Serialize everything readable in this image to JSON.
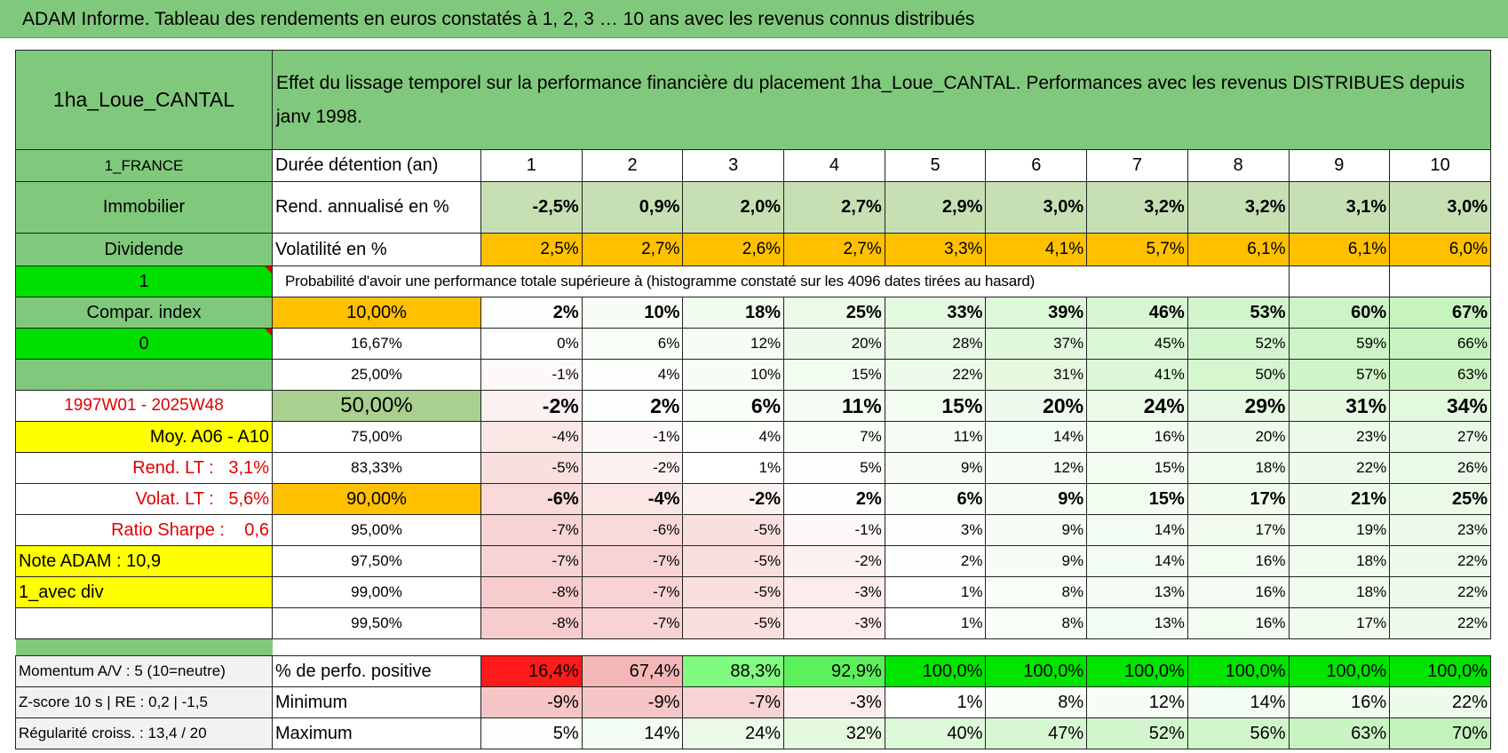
{
  "header": {
    "title": "ADAM Informe. Tableau des rendements en euros constatés à 1, 2, 3 … 10 ans avec les revenus connus distribués"
  },
  "table": {
    "corner": "1ha_Loue_CANTAL",
    "description": "Effet du lissage temporel sur la performance financière du placement 1ha_Loue_CANTAL. Performances avec les revenus DISTRIBUES depuis janv 1998.",
    "rows": [
      {
        "side": "1_FRANCE",
        "label": "Durée détention (an)",
        "cells": [
          "1",
          "2",
          "3",
          "4",
          "5",
          "6",
          "7",
          "8",
          "9",
          "10"
        ]
      },
      {
        "side": "Immobilier",
        "label": "Rend. annualisé en %",
        "cells": [
          "-2,5%",
          "0,9%",
          "2,0%",
          "2,7%",
          "2,9%",
          "3,0%",
          "3,2%",
          "3,2%",
          "3,1%",
          "3,0%"
        ]
      },
      {
        "side": "Dividende",
        "label": "Volatilité en %",
        "cells": [
          "2,5%",
          "2,7%",
          "2,6%",
          "2,7%",
          "3,3%",
          "4,1%",
          "5,7%",
          "6,1%",
          "6,1%",
          "6,0%"
        ]
      },
      {
        "side": "1",
        "label": "Probabilité d'avoir une performance totale supérieure à (histogramme constaté sur les 4096 dates tirées au hasard)"
      },
      {
        "side": "Compar. index",
        "label": "10,00%",
        "cells": [
          "2%",
          "10%",
          "18%",
          "25%",
          "33%",
          "39%",
          "46%",
          "53%",
          "60%",
          "67%"
        ]
      },
      {
        "side": "0",
        "label": "16,67%",
        "cells": [
          "0%",
          "6%",
          "12%",
          "20%",
          "28%",
          "37%",
          "45%",
          "52%",
          "59%",
          "66%"
        ]
      },
      {
        "label": "25,00%",
        "cells": [
          "-1%",
          "4%",
          "10%",
          "15%",
          "22%",
          "31%",
          "41%",
          "50%",
          "57%",
          "63%"
        ]
      },
      {
        "side": "1997W01 - 2025W48",
        "label": "50,00%",
        "cells": [
          "-2%",
          "2%",
          "6%",
          "11%",
          "15%",
          "20%",
          "24%",
          "29%",
          "31%",
          "34%"
        ]
      },
      {
        "side": "Moy. A06 - A10",
        "label": "75,00%",
        "cells": [
          "-4%",
          "-1%",
          "4%",
          "7%",
          "11%",
          "14%",
          "16%",
          "20%",
          "23%",
          "27%"
        ]
      },
      {
        "side": "Rend. LT :   3,1%",
        "label": "83,33%",
        "cells": [
          "-5%",
          "-2%",
          "1%",
          "5%",
          "9%",
          "12%",
          "15%",
          "18%",
          "22%",
          "26%"
        ]
      },
      {
        "side": "Volat. LT :   5,6%",
        "label": "90,00%",
        "cells": [
          "-6%",
          "-4%",
          "-2%",
          "2%",
          "6%",
          "9%",
          "15%",
          "17%",
          "21%",
          "25%"
        ]
      },
      {
        "side": "Ratio Sharpe :    0,6",
        "label": "95,00%",
        "cells": [
          "-7%",
          "-6%",
          "-5%",
          "-1%",
          "3%",
          "9%",
          "14%",
          "17%",
          "19%",
          "23%"
        ]
      },
      {
        "side": "Note ADAM : 10,9",
        "label": "97,50%",
        "cells": [
          "-7%",
          "-7%",
          "-5%",
          "-2%",
          "2%",
          "9%",
          "14%",
          "16%",
          "18%",
          "22%"
        ]
      },
      {
        "side": "1_avec div",
        "label": "99,00%",
        "cells": [
          "-8%",
          "-7%",
          "-5%",
          "-3%",
          "1%",
          "8%",
          "13%",
          "16%",
          "18%",
          "22%"
        ]
      },
      {
        "label": "99,50%",
        "cells": [
          "-8%",
          "-7%",
          "-5%",
          "-3%",
          "1%",
          "8%",
          "13%",
          "16%",
          "17%",
          "22%"
        ]
      }
    ],
    "summary_rows": [
      {
        "side": "Momentum A/V : 5 (10=neutre)",
        "label": "% de perfo. positive",
        "cells": [
          "16,4%",
          "67,4%",
          "88,3%",
          "92,9%",
          "100,0%",
          "100,0%",
          "100,0%",
          "100,0%",
          "100,0%",
          "100,0%"
        ]
      },
      {
        "side": "Z-score 10 s | RE : 0,2 | -1,5",
        "label": "Minimum",
        "cells": [
          "-9%",
          "-9%",
          "-7%",
          "-3%",
          "1%",
          "8%",
          "12%",
          "14%",
          "16%",
          "22%"
        ]
      },
      {
        "side": "Régularité croiss. : 13,4 / 20",
        "label": "Maximum",
        "cells": [
          "5%",
          "14%",
          "24%",
          "32%",
          "40%",
          "47%",
          "52%",
          "56%",
          "63%",
          "70%"
        ]
      }
    ]
  }
}
